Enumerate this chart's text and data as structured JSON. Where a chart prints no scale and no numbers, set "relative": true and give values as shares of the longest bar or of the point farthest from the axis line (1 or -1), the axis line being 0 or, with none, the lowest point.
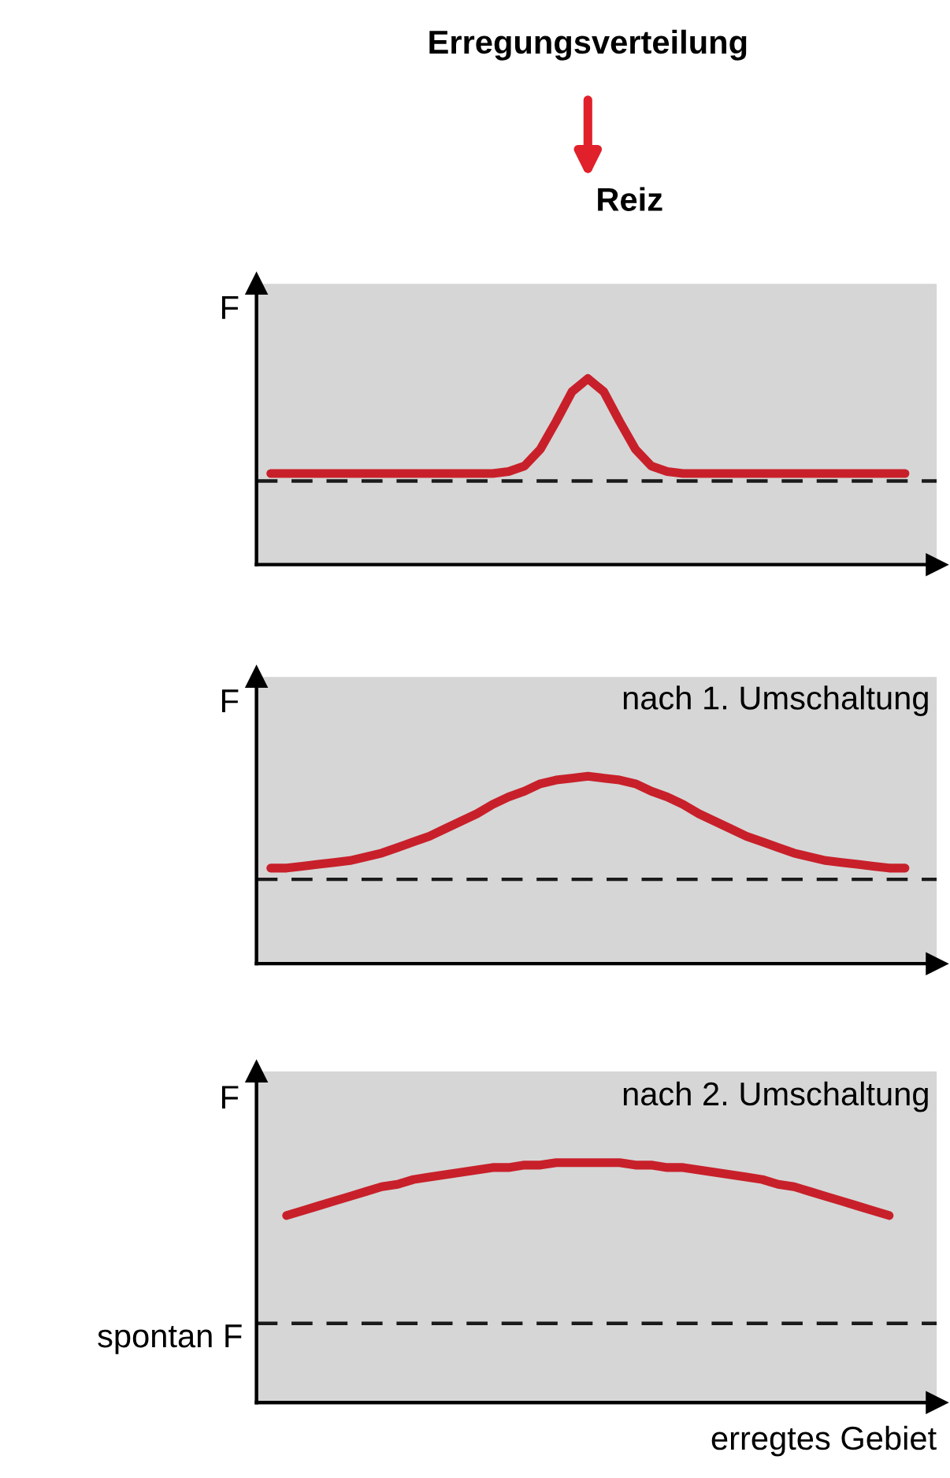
{
  "chart_data": [
    {
      "type": "line",
      "title": "Erregungsverteilung",
      "ylabel": "F",
      "annotations": [
        "Reiz"
      ],
      "relative": true,
      "tick_labels": false,
      "categories": [
        null,
        null,
        null,
        null,
        null,
        null,
        null,
        null,
        null,
        null,
        null,
        null,
        null,
        null,
        null,
        null,
        null,
        null,
        null,
        null,
        null,
        null,
        null,
        null,
        null,
        null,
        null,
        null,
        null,
        null,
        null,
        null,
        null,
        null,
        null,
        null,
        null,
        null,
        null,
        null,
        null
      ],
      "series": [
        {
          "color": "#c8202a",
          "values": [
            0.49,
            0.49,
            0.49,
            0.49,
            0.49,
            0.49,
            0.49,
            0.49,
            0.49,
            0.49,
            0.49,
            0.49,
            0.49,
            0.49,
            0.49,
            0.5,
            0.53,
            0.62,
            0.77,
            0.93,
            1.0,
            0.93,
            0.77,
            0.62,
            0.53,
            0.5,
            0.49,
            0.49,
            0.49,
            0.49,
            0.49,
            0.49,
            0.49,
            0.49,
            0.49,
            0.49,
            0.49,
            0.49,
            0.49,
            0.49,
            0.49
          ]
        }
      ],
      "ref_lines": [
        {
          "axis": "y",
          "value": 0.45,
          "color": "#1a1a1a",
          "line_style": "dashed"
        }
      ]
    },
    {
      "type": "line",
      "title": "nach 1. Umschaltung",
      "ylabel": "F",
      "relative": true,
      "tick_labels": false,
      "categories": [
        null,
        null,
        null,
        null,
        null,
        null,
        null,
        null,
        null,
        null,
        null,
        null,
        null,
        null,
        null,
        null,
        null,
        null,
        null,
        null,
        null,
        null,
        null,
        null,
        null,
        null,
        null,
        null,
        null,
        null,
        null,
        null,
        null,
        null,
        null,
        null,
        null,
        null,
        null,
        null,
        null
      ],
      "series": [
        {
          "color": "#c8202a",
          "values": [
            0.51,
            0.51,
            0.52,
            0.53,
            0.54,
            0.55,
            0.57,
            0.59,
            0.62,
            0.65,
            0.68,
            0.72,
            0.76,
            0.8,
            0.85,
            0.89,
            0.92,
            0.96,
            0.98,
            0.99,
            1.0,
            0.99,
            0.98,
            0.96,
            0.92,
            0.89,
            0.85,
            0.8,
            0.76,
            0.72,
            0.68,
            0.65,
            0.62,
            0.59,
            0.57,
            0.55,
            0.54,
            0.53,
            0.52,
            0.51,
            0.51
          ]
        }
      ],
      "ref_lines": [
        {
          "axis": "y",
          "value": 0.45,
          "color": "#1a1a1a",
          "line_style": "dashed"
        }
      ]
    },
    {
      "type": "line",
      "title": "nach 2. Umschaltung",
      "ylabel": "F",
      "xlabel": "erregtes Gebiet",
      "relative": true,
      "tick_labels": false,
      "categories": [
        null,
        null,
        null,
        null,
        null,
        null,
        null,
        null,
        null,
        null,
        null,
        null,
        null,
        null,
        null,
        null,
        null,
        null,
        null,
        null,
        null,
        null,
        null,
        null,
        null,
        null,
        null,
        null,
        null,
        null,
        null,
        null,
        null,
        null,
        null,
        null,
        null,
        null,
        null,
        null,
        null
      ],
      "series": [
        {
          "color": "#c8202a",
          "values": [
            null,
            0.78,
            0.8,
            0.82,
            0.84,
            0.86,
            0.88,
            0.9,
            0.91,
            0.93,
            0.94,
            0.95,
            0.96,
            0.97,
            0.98,
            0.98,
            0.99,
            0.99,
            1.0,
            1.0,
            1.0,
            1.0,
            1.0,
            0.99,
            0.99,
            0.98,
            0.98,
            0.97,
            0.96,
            0.95,
            0.94,
            0.93,
            0.91,
            0.9,
            0.88,
            0.86,
            0.84,
            0.82,
            0.8,
            0.78,
            null
          ]
        }
      ],
      "ref_lines": [
        {
          "axis": "y",
          "value": 0.33,
          "label": "spontan F",
          "color": "#1a1a1a",
          "line_style": "dashed"
        }
      ]
    }
  ]
}
